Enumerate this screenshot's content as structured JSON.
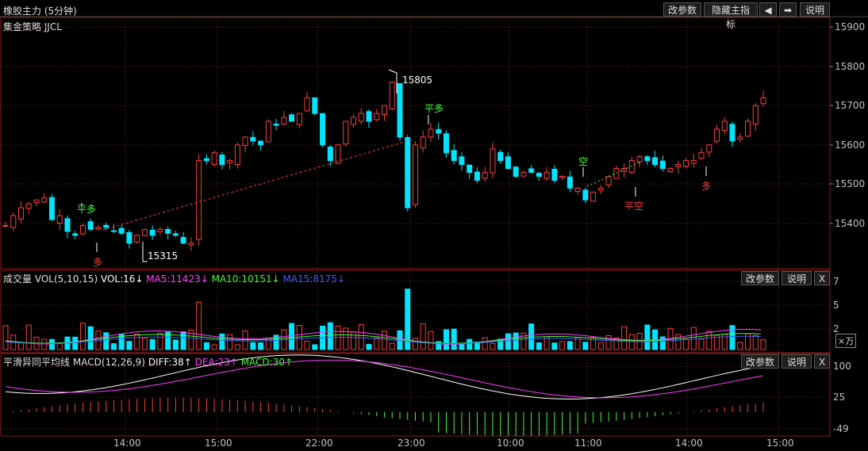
{
  "window": {
    "title": "橡胶主力 (5分钟)",
    "buttons": {
      "params": "改参数",
      "hide_main": "隐藏主指标",
      "prev": "◀",
      "next": "➡",
      "help": "说明"
    }
  },
  "main": {
    "strategy": "集金策略 JJCL",
    "price_axis": [
      "15900",
      "15800",
      "15700",
      "15600",
      "15500",
      "15400"
    ],
    "markers": {
      "high": "15805",
      "low": "15315",
      "signal_pingduo_1": "平多",
      "signal_duo_1": "多",
      "signal_pingduo_2": "平多",
      "signal_kong": "空",
      "signal_pingkong": "平空",
      "signal_duo_2": "多"
    }
  },
  "volume": {
    "label_name": "成交量",
    "label_vol": "VOL(5,10,15)",
    "label_cur": "VOL:16↓",
    "label_ma5": "MA5:11423↓",
    "label_ma10": "MA10:10151↓",
    "label_ma15": "MA15:8175↓",
    "buttons": {
      "params": "改参数",
      "help": "说明",
      "close": "X"
    },
    "axis": [
      "7",
      "5",
      "2"
    ],
    "unit": "×万"
  },
  "macd": {
    "label_name": "平滑异同平均线",
    "label_params": "MACD(12,26,9)",
    "label_diff": "DIFF:38↑",
    "label_dea": "DEA:23↑",
    "label_macd": "MACD:30↑",
    "buttons": {
      "params": "改参数",
      "help": "说明",
      "close": "X"
    },
    "axis": [
      "100",
      "25",
      "-49"
    ]
  },
  "time_axis": [
    "14:00",
    "15:00",
    "22:00",
    "23:00",
    "10:00",
    "11:00",
    "14:00",
    "15:00"
  ],
  "colors": {
    "up": "#ff3c3c",
    "down": "#00e5ff",
    "ma5": "#ff40ff",
    "ma10": "#3cff3c",
    "ma15": "#4060ff",
    "grid": "#8a1a1a"
  }
}
